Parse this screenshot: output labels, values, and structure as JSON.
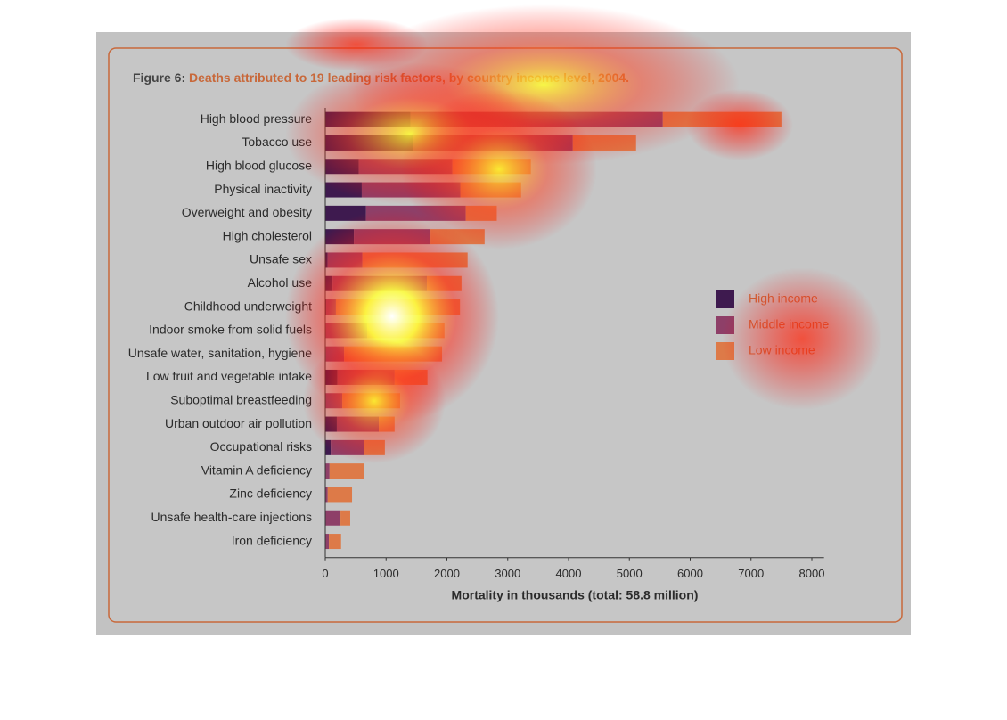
{
  "chart_data": {
    "type": "stacked_barh",
    "figure_label": "Figure 6:",
    "title": "Deaths attributed to 19 leading risk factors, by country income level, 2004.",
    "xlabel": "Mortality in thousands (total: 58.8 million)",
    "categories": [
      "High blood pressure",
      "Tobacco use",
      "High blood glucose",
      "Physical inactivity",
      "Overweight and obesity",
      "High cholesterol",
      "Unsafe sex",
      "Alcohol use",
      "Childhood underweight",
      "Indoor smoke from solid fuels",
      "Unsafe water, sanitation, hygiene",
      "Low fruit and vegetable intake",
      "Suboptimal breastfeeding",
      "Urban outdoor air pollution",
      "Occupational risks",
      "Vitamin A deficiency",
      "Zinc deficiency",
      "Unsafe health-care injections",
      "Iron deficiency"
    ],
    "series": [
      {
        "name": "High income",
        "color": "#3e1a4f",
        "values": [
          1400,
          1450,
          550,
          600,
          670,
          470,
          40,
          120,
          15,
          0,
          10,
          200,
          0,
          190,
          90,
          0,
          0,
          0,
          0
        ]
      },
      {
        "name": "Middle income",
        "color": "#8e3f68",
        "values": [
          4150,
          2620,
          1540,
          1620,
          1640,
          1260,
          570,
          1550,
          160,
          690,
          300,
          940,
          280,
          690,
          550,
          70,
          40,
          250,
          60
        ]
      },
      {
        "name": "Low income",
        "color": "#dd7a48",
        "values": [
          1950,
          1040,
          1290,
          1000,
          510,
          890,
          1730,
          570,
          2040,
          1270,
          1610,
          540,
          950,
          260,
          340,
          570,
          400,
          160,
          200
        ]
      }
    ],
    "xlim": [
      0,
      8200
    ],
    "xticks": [
      0,
      1000,
      2000,
      3000,
      4000,
      5000,
      6000,
      7000,
      8000
    ],
    "legend": "right"
  }
}
